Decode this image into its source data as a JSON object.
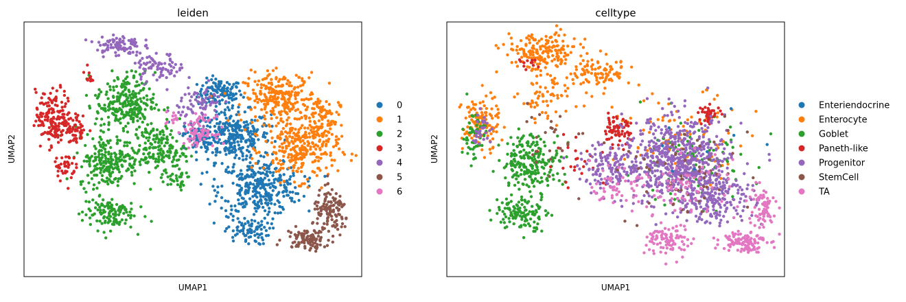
{
  "colors": {
    "c0": "#1f77b4",
    "c1": "#ff7f0e",
    "c2": "#2ca02c",
    "c3": "#d62728",
    "c4": "#9467bd",
    "c5": "#8c564b",
    "c6": "#e377c2"
  },
  "chart_data": [
    {
      "type": "scatter",
      "title": "leiden",
      "xlabel": "UMAP1",
      "ylabel": "UMAP2",
      "grid": false,
      "ticks": false,
      "legend_position": "right",
      "point_size": 2.2,
      "xlim": [
        0,
        100
      ],
      "ylim": [
        0,
        100
      ],
      "legend": [
        {
          "label": "0",
          "color": "#1f77b4"
        },
        {
          "label": "1",
          "color": "#ff7f0e"
        },
        {
          "label": "2",
          "color": "#2ca02c"
        },
        {
          "label": "3",
          "color": "#d62728"
        },
        {
          "label": "4",
          "color": "#9467bd"
        },
        {
          "label": "5",
          "color": "#8c564b"
        },
        {
          "label": "6",
          "color": "#e377c2"
        }
      ],
      "series": [
        {
          "name": "0",
          "color": "#1f77b4",
          "regions": [
            {
              "cx": 58,
              "cy": 72,
              "rx": 6,
              "ry": 5,
              "n": 120
            },
            {
              "cx": 62,
              "cy": 55,
              "rx": 10,
              "ry": 9,
              "n": 300
            },
            {
              "cx": 70,
              "cy": 35,
              "rx": 11,
              "ry": 10,
              "n": 320
            },
            {
              "cx": 66,
              "cy": 18,
              "rx": 6,
              "ry": 5,
              "n": 80
            },
            {
              "cx": 52,
              "cy": 55,
              "rx": 4,
              "ry": 5,
              "n": 60
            }
          ]
        },
        {
          "name": "1",
          "color": "#ff7f0e",
          "regions": [
            {
              "cx": 76,
              "cy": 70,
              "rx": 10,
              "ry": 9,
              "n": 260
            },
            {
              "cx": 82,
              "cy": 50,
              "rx": 10,
              "ry": 11,
              "n": 280
            },
            {
              "cx": 88,
              "cy": 62,
              "rx": 5,
              "ry": 8,
              "n": 80
            }
          ]
        },
        {
          "name": "2",
          "color": "#2ca02c",
          "regions": [
            {
              "cx": 30,
              "cy": 68,
              "rx": 8,
              "ry": 11,
              "n": 260
            },
            {
              "cx": 25,
              "cy": 45,
              "rx": 8,
              "ry": 9,
              "n": 220
            },
            {
              "cx": 40,
              "cy": 50,
              "rx": 7,
              "ry": 8,
              "n": 160
            },
            {
              "cx": 25,
              "cy": 25,
              "rx": 7,
              "ry": 6,
              "n": 120
            },
            {
              "cx": 45,
              "cy": 38,
              "rx": 4,
              "ry": 4,
              "n": 30
            }
          ]
        },
        {
          "name": "3",
          "color": "#d62728",
          "regions": [
            {
              "cx": 9,
              "cy": 62,
              "rx": 5,
              "ry": 10,
              "n": 180
            },
            {
              "cx": 16,
              "cy": 58,
              "rx": 2.5,
              "ry": 5,
              "n": 40
            },
            {
              "cx": 12,
              "cy": 43,
              "rx": 3,
              "ry": 5,
              "n": 40
            },
            {
              "cx": 19,
              "cy": 79,
              "rx": 1,
              "ry": 3,
              "n": 10
            }
          ]
        },
        {
          "name": "4",
          "color": "#9467bd",
          "regions": [
            {
              "cx": 28,
              "cy": 91,
              "rx": 6,
              "ry": 4,
              "n": 90
            },
            {
              "cx": 40,
              "cy": 82,
              "rx": 7,
              "ry": 5,
              "n": 80
            },
            {
              "cx": 52,
              "cy": 68,
              "rx": 6,
              "ry": 6,
              "n": 70
            }
          ]
        },
        {
          "name": "5",
          "color": "#8c564b",
          "regions": [
            {
              "cx": 91,
              "cy": 25,
              "rx": 5,
              "ry": 8,
              "n": 120
            },
            {
              "cx": 84,
              "cy": 15,
              "rx": 6,
              "ry": 4,
              "n": 100
            }
          ]
        },
        {
          "name": "6",
          "color": "#e377c2",
          "regions": [
            {
              "cx": 52,
              "cy": 57,
              "rx": 4,
              "ry": 5,
              "n": 80
            },
            {
              "cx": 44,
              "cy": 62,
              "rx": 2,
              "ry": 2.5,
              "n": 12
            }
          ]
        }
      ]
    },
    {
      "type": "scatter",
      "title": "celltype",
      "xlabel": "UMAP1",
      "ylabel": "UMAP2",
      "grid": false,
      "ticks": false,
      "legend_position": "right",
      "point_size": 2.2,
      "xlim": [
        0,
        100
      ],
      "ylim": [
        0,
        100
      ],
      "legend": [
        {
          "label": "Enteriendocrine",
          "color": "#1f77b4"
        },
        {
          "label": "Enterocyte",
          "color": "#ff7f0e"
        },
        {
          "label": "Goblet",
          "color": "#2ca02c"
        },
        {
          "label": "Paneth-like",
          "color": "#d62728"
        },
        {
          "label": "Progenitor",
          "color": "#9467bd"
        },
        {
          "label": "StemCell",
          "color": "#8c564b"
        },
        {
          "label": "TA",
          "color": "#e377c2"
        }
      ],
      "series": [
        {
          "name": "Enterocyte",
          "color": "#ff7f0e",
          "regions": [
            {
              "cx": 28,
              "cy": 88,
              "rx": 10,
              "ry": 7,
              "n": 180
            },
            {
              "cx": 45,
              "cy": 80,
              "rx": 9,
              "ry": 6,
              "n": 100
            },
            {
              "cx": 10,
              "cy": 60,
              "rx": 5,
              "ry": 10,
              "n": 120
            },
            {
              "cx": 30,
              "cy": 70,
              "rx": 8,
              "ry": 8,
              "n": 60
            },
            {
              "cx": 70,
              "cy": 55,
              "rx": 18,
              "ry": 15,
              "n": 80
            }
          ]
        },
        {
          "name": "Goblet",
          "color": "#2ca02c",
          "regions": [
            {
              "cx": 25,
              "cy": 45,
              "rx": 8,
              "ry": 10,
              "n": 220
            },
            {
              "cx": 22,
              "cy": 25,
              "rx": 7,
              "ry": 6,
              "n": 120
            },
            {
              "cx": 8,
              "cy": 55,
              "rx": 3,
              "ry": 10,
              "n": 60
            },
            {
              "cx": 72,
              "cy": 45,
              "rx": 18,
              "ry": 15,
              "n": 90
            }
          ]
        },
        {
          "name": "Paneth-like",
          "color": "#d62728",
          "regions": [
            {
              "cx": 50,
              "cy": 57,
              "rx": 4,
              "ry": 5,
              "n": 70
            },
            {
              "cx": 78,
              "cy": 64,
              "rx": 3,
              "ry": 3,
              "n": 40
            },
            {
              "cx": 24,
              "cy": 84,
              "rx": 3,
              "ry": 1.5,
              "n": 12
            },
            {
              "cx": 40,
              "cy": 45,
              "rx": 10,
              "ry": 10,
              "n": 25
            }
          ]
        },
        {
          "name": "Progenitor",
          "color": "#9467bd",
          "regions": [
            {
              "cx": 68,
              "cy": 45,
              "rx": 14,
              "ry": 16,
              "n": 650
            },
            {
              "cx": 80,
              "cy": 32,
              "rx": 10,
              "ry": 10,
              "n": 200
            },
            {
              "cx": 48,
              "cy": 42,
              "rx": 8,
              "ry": 7,
              "n": 120
            },
            {
              "cx": 10,
              "cy": 58,
              "rx": 3,
              "ry": 6,
              "n": 30
            }
          ]
        },
        {
          "name": "StemCell",
          "color": "#8c564b",
          "regions": [
            {
              "cx": 70,
              "cy": 40,
              "rx": 18,
              "ry": 18,
              "n": 60
            },
            {
              "cx": 30,
              "cy": 55,
              "rx": 10,
              "ry": 10,
              "n": 25
            }
          ]
        },
        {
          "name": "TA",
          "color": "#e377c2",
          "regions": [
            {
              "cx": 88,
              "cy": 14,
              "rx": 6,
              "ry": 4,
              "n": 110
            },
            {
              "cx": 93,
              "cy": 27,
              "rx": 4,
              "ry": 8,
              "n": 70
            },
            {
              "cx": 66,
              "cy": 14,
              "rx": 6,
              "ry": 6,
              "n": 90
            },
            {
              "cx": 50,
              "cy": 35,
              "rx": 6,
              "ry": 6,
              "n": 50
            },
            {
              "cx": 70,
              "cy": 35,
              "rx": 14,
              "ry": 12,
              "n": 80
            }
          ]
        },
        {
          "name": "Enteriendocrine",
          "color": "#1f77b4",
          "regions": [
            {
              "cx": 72,
              "cy": 45,
              "rx": 15,
              "ry": 14,
              "n": 8
            }
          ]
        }
      ]
    }
  ]
}
